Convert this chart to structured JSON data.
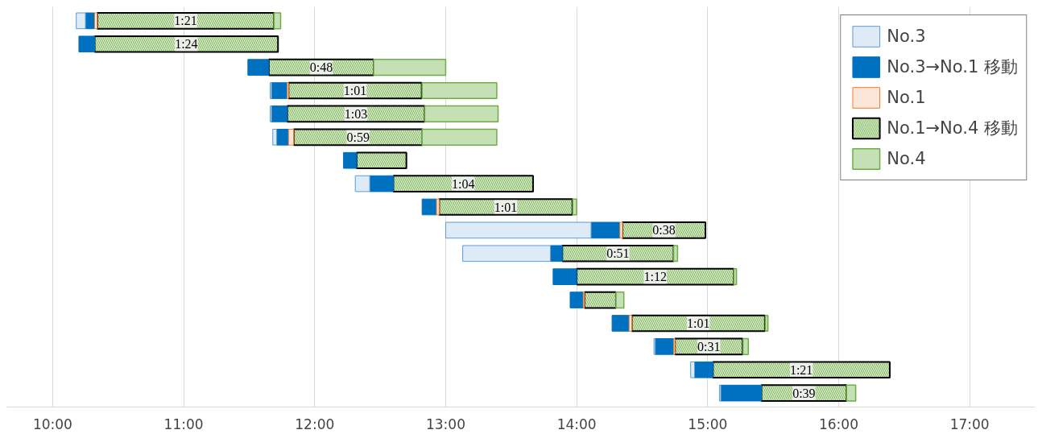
{
  "chart_data": {
    "type": "bar",
    "orientation": "horizontal",
    "categories": [
      null,
      null,
      null,
      null,
      null,
      null,
      null,
      null,
      null,
      null,
      null,
      null,
      null,
      null,
      null,
      null,
      null
    ],
    "series": [
      {
        "name": "No.3",
        "color": "#deebf7",
        "base": [
          10.18,
          null,
          null,
          11.66,
          11.66,
          11.68,
          null,
          12.31,
          null,
          13.0,
          13.13,
          null,
          null,
          null,
          14.59,
          14.87,
          15.09
        ],
        "values": [
          0.07,
          null,
          null,
          0.01,
          0.01,
          0.03,
          null,
          0.11,
          null,
          1.11,
          0.67,
          null,
          null,
          null,
          0.01,
          0.03,
          0.01
        ]
      },
      {
        "name": "No.3→No.1 移動",
        "color": "#0070c0",
        "base": [
          10.25,
          10.2,
          11.49,
          11.67,
          11.67,
          11.71,
          12.22,
          12.42,
          12.82,
          14.11,
          13.8,
          13.82,
          13.95,
          14.27,
          14.6,
          14.9,
          15.1
        ],
        "values": [
          0.07,
          0.12,
          0.16,
          0.12,
          0.12,
          0.09,
          0.1,
          0.18,
          0.11,
          0.22,
          0.09,
          0.18,
          0.1,
          0.13,
          0.14,
          0.14,
          0.31
        ]
      },
      {
        "name": "No.1",
        "color": "#fbe5d6",
        "base": [
          10.32,
          null,
          null,
          11.79,
          null,
          11.8,
          null,
          null,
          12.93,
          14.33,
          null,
          null,
          14.05,
          14.4,
          14.74,
          null,
          null
        ],
        "values": [
          0.02,
          null,
          null,
          0.01,
          null,
          0.04,
          null,
          null,
          0.02,
          0.02,
          null,
          null,
          0.01,
          0.02,
          0.01,
          null,
          null
        ]
      },
      {
        "name": "No.1→No.4 移動",
        "color": "#e2f0d9",
        "base": [
          10.34,
          10.32,
          11.65,
          11.8,
          11.79,
          11.84,
          12.32,
          12.6,
          12.95,
          14.35,
          13.89,
          14.0,
          14.06,
          14.42,
          14.75,
          15.04,
          15.41
        ],
        "values": [
          1.35,
          1.4,
          0.8,
          1.017,
          1.05,
          0.983,
          0.38,
          1.067,
          1.017,
          0.633,
          0.85,
          1.2,
          0.24,
          1.017,
          0.517,
          1.35,
          0.65
        ],
        "value_labels": [
          "1:21",
          "1:24",
          "0:48",
          "1:01",
          "1:03",
          "0:59",
          null,
          "1:04",
          "1:01",
          "0:38",
          "0:51",
          "1:12",
          null,
          "1:01",
          "0:31",
          "1:21",
          "0:39"
        ]
      },
      {
        "name": "No.4",
        "color": "#c5e0b4",
        "base": [
          11.69,
          null,
          12.45,
          12.82,
          12.84,
          12.82,
          null,
          null,
          13.97,
          null,
          14.74,
          15.2,
          14.3,
          15.44,
          15.27,
          null,
          16.06
        ],
        "values": [
          0.05,
          null,
          0.55,
          0.57,
          0.56,
          0.57,
          null,
          null,
          0.03,
          null,
          0.03,
          0.02,
          0.06,
          0.02,
          0.04,
          null,
          0.07
        ]
      }
    ],
    "xlim": [
      9.65,
      17.5
    ],
    "xticks": [
      {
        "value": 10,
        "label": "10:00"
      },
      {
        "value": 11,
        "label": "11:00"
      },
      {
        "value": 12,
        "label": "12:00"
      },
      {
        "value": 13,
        "label": "13:00"
      },
      {
        "value": 14,
        "label": "14:00"
      },
      {
        "value": 15,
        "label": "15:00"
      },
      {
        "value": 16,
        "label": "16:00"
      },
      {
        "value": 17,
        "label": "17:00"
      }
    ],
    "grid": "x",
    "legend": "top right",
    "tick_labels": "x"
  }
}
